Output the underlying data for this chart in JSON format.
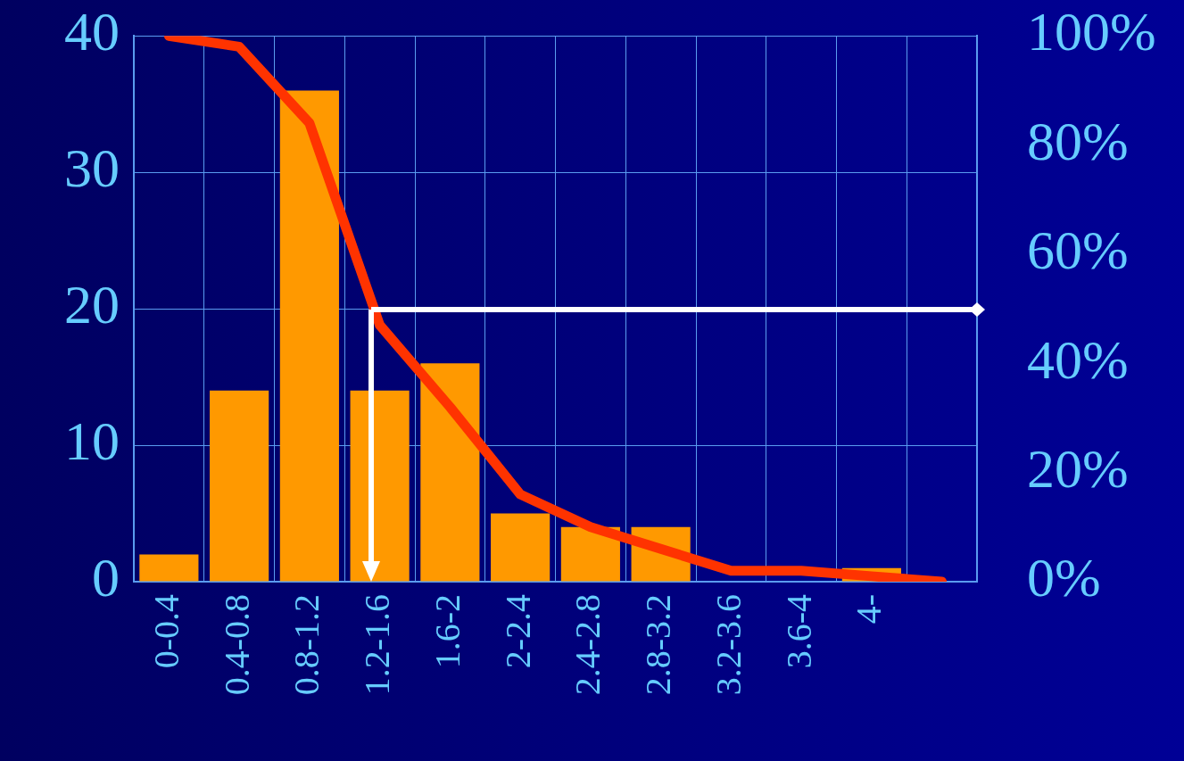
{
  "chart_data": {
    "type": "bar",
    "categories": [
      "0-0.4",
      "0.4-0.8",
      "0.8-1.2",
      "1.2-1.6",
      "1.6-2",
      "2-2.4",
      "2.4-2.8",
      "2.8-3.2",
      "3.2-3.6",
      "3.6-4",
      "4-",
      null
    ],
    "series": [
      {
        "color": "#ff9900",
        "values": [
          2,
          14,
          36,
          14,
          16,
          5,
          4,
          4,
          0,
          null,
          1,
          null
        ]
      },
      {
        "type": "line",
        "axis": "y2",
        "color": "#ff3300",
        "marker": "none",
        "line_style": "solid",
        "values": [
          100,
          98,
          84,
          47,
          32,
          16,
          10,
          6,
          2,
          2,
          1,
          0
        ]
      }
    ],
    "ylim": [
      0,
      40
    ],
    "yticks": [
      0,
      10,
      20,
      30,
      40
    ],
    "y2lim": [
      0,
      100
    ],
    "y2ticks": [
      {
        "value": 0,
        "label": "0%"
      },
      {
        "value": 20,
        "label": "20%"
      },
      {
        "value": 40,
        "label": "40%"
      },
      {
        "value": 60,
        "label": "60%"
      },
      {
        "value": 80,
        "label": "80%"
      },
      {
        "value": 100,
        "label": "100%"
      }
    ],
    "grid": true,
    "legend": false
  }
}
